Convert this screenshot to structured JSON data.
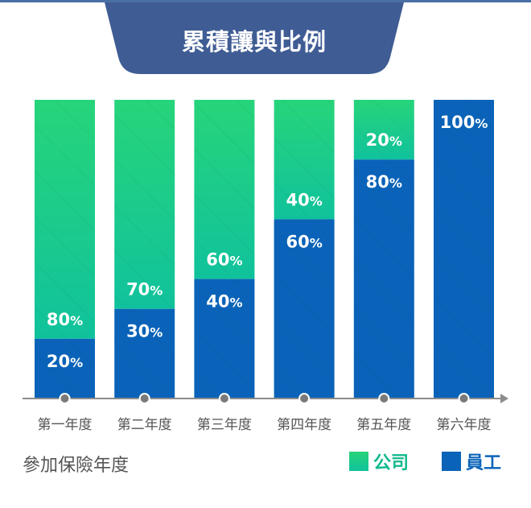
{
  "title": "累積讓與比例",
  "chart_data": {
    "type": "bar",
    "stacked": true,
    "categories": [
      "第一年度",
      "第二年度",
      "第三年度",
      "第四年度",
      "第五年度",
      "第六年度"
    ],
    "series": [
      {
        "name": "員工",
        "values": [
          20,
          30,
          40,
          60,
          80,
          100
        ],
        "color": "#0a63b8"
      },
      {
        "name": "公司",
        "values": [
          80,
          70,
          60,
          40,
          20,
          0
        ],
        "color": "#22cc7a"
      }
    ],
    "value_suffix": "%",
    "ylim": [
      0,
      100
    ],
    "xlabel": "參加保險年度"
  },
  "colors": {
    "title_bg": "#3f5c94",
    "company_top": "#27d47a",
    "company_bottom": "#10c29c",
    "employee": "#0a63b8",
    "axis": "#8c8c8c",
    "company_legend_text": "#12b98e",
    "employee_legend_text": "#0a63b8"
  }
}
